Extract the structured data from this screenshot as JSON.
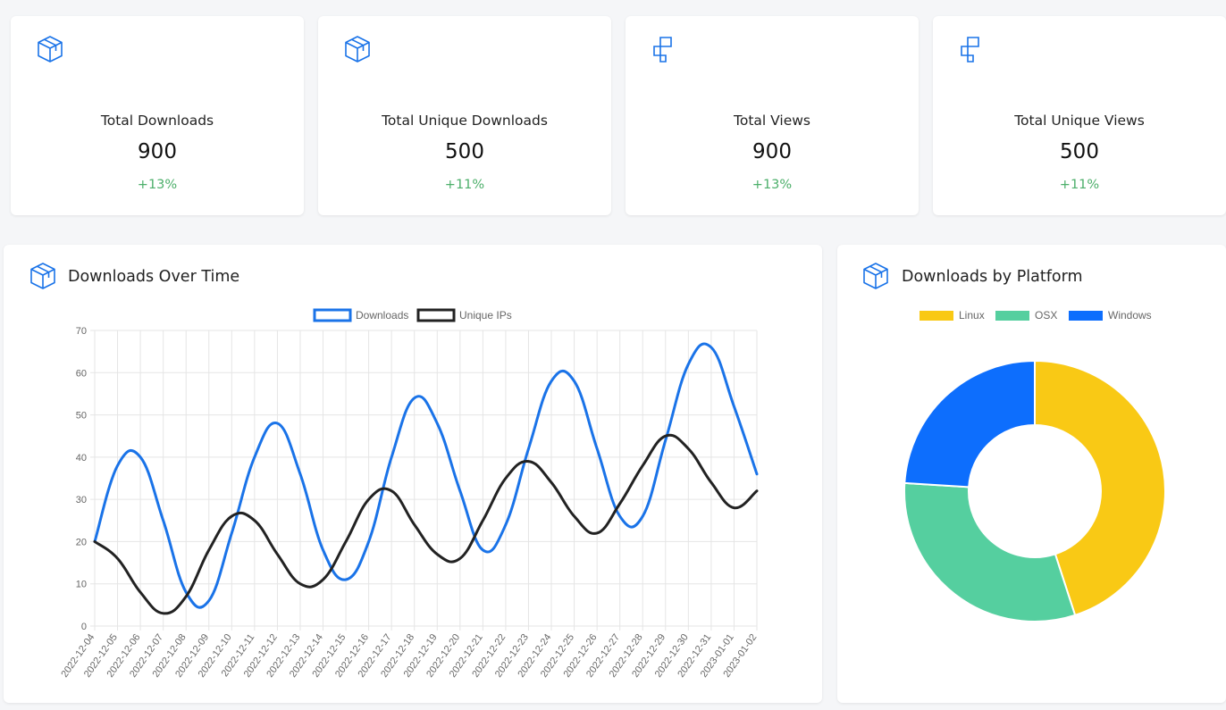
{
  "stats": [
    {
      "title": "Total Downloads",
      "value": "900",
      "change": "+13%",
      "icon": "package-box-icon"
    },
    {
      "title": "Total Unique Downloads",
      "value": "500",
      "change": "+11%",
      "icon": "package-box-icon"
    },
    {
      "title": "Total Views",
      "value": "900",
      "change": "+13%",
      "icon": "nodes-icon"
    },
    {
      "title": "Total Unique Views",
      "value": "500",
      "change": "+11%",
      "icon": "nodes-icon"
    }
  ],
  "colors": {
    "accent": "#1a73e8",
    "positive": "#4caf6a",
    "downloads_line": "#1a73e8",
    "unique_line": "#222222",
    "linux": "#f9c915",
    "osx": "#55cf9f",
    "windows": "#0d6efd"
  },
  "line_panel": {
    "title": "Downloads Over Time",
    "icon": "package-box-icon"
  },
  "pie_panel": {
    "title": "Downloads by Platform",
    "icon": "package-box-icon"
  },
  "chart_data": [
    {
      "type": "line",
      "title": "Downloads Over Time",
      "categories": [
        "2022-12-04",
        "2022-12-05",
        "2022-12-06",
        "2022-12-07",
        "2022-12-08",
        "2022-12-09",
        "2022-12-10",
        "2022-12-11",
        "2022-12-12",
        "2022-12-13",
        "2022-12-14",
        "2022-12-15",
        "2022-12-16",
        "2022-12-17",
        "2022-12-18",
        "2022-12-19",
        "2022-12-20",
        "2022-12-21",
        "2022-12-22",
        "2022-12-23",
        "2022-12-24",
        "2022-12-25",
        "2022-12-26",
        "2022-12-27",
        "2022-12-28",
        "2022-12-29",
        "2022-12-30",
        "2022-12-31",
        "2023-01-01",
        "2023-01-02"
      ],
      "series": [
        {
          "name": "Downloads",
          "values": [
            20,
            38,
            40,
            25,
            8,
            6,
            22,
            40,
            48,
            36,
            18,
            11,
            20,
            40,
            54,
            48,
            32,
            18,
            24,
            42,
            58,
            58,
            42,
            26,
            26,
            44,
            62,
            66,
            52,
            36
          ]
        },
        {
          "name": "Unique IPs",
          "values": [
            20,
            16,
            8,
            3,
            7,
            18,
            26,
            25,
            17,
            10,
            11,
            20,
            30,
            32,
            24,
            17,
            16,
            25,
            35,
            39,
            34,
            26,
            22,
            29,
            38,
            45,
            42,
            34,
            28,
            32
          ]
        }
      ],
      "ylim": [
        0,
        70
      ],
      "yticks": [
        "0",
        "10",
        "20",
        "30",
        "40",
        "50",
        "60",
        "70"
      ],
      "grid": true,
      "legend": "top"
    },
    {
      "type": "pie",
      "title": "Downloads by Platform",
      "labels": [
        "Linux",
        "OSX",
        "Windows"
      ],
      "values": [
        45,
        31,
        24
      ],
      "legend": "top",
      "donut": true
    }
  ]
}
